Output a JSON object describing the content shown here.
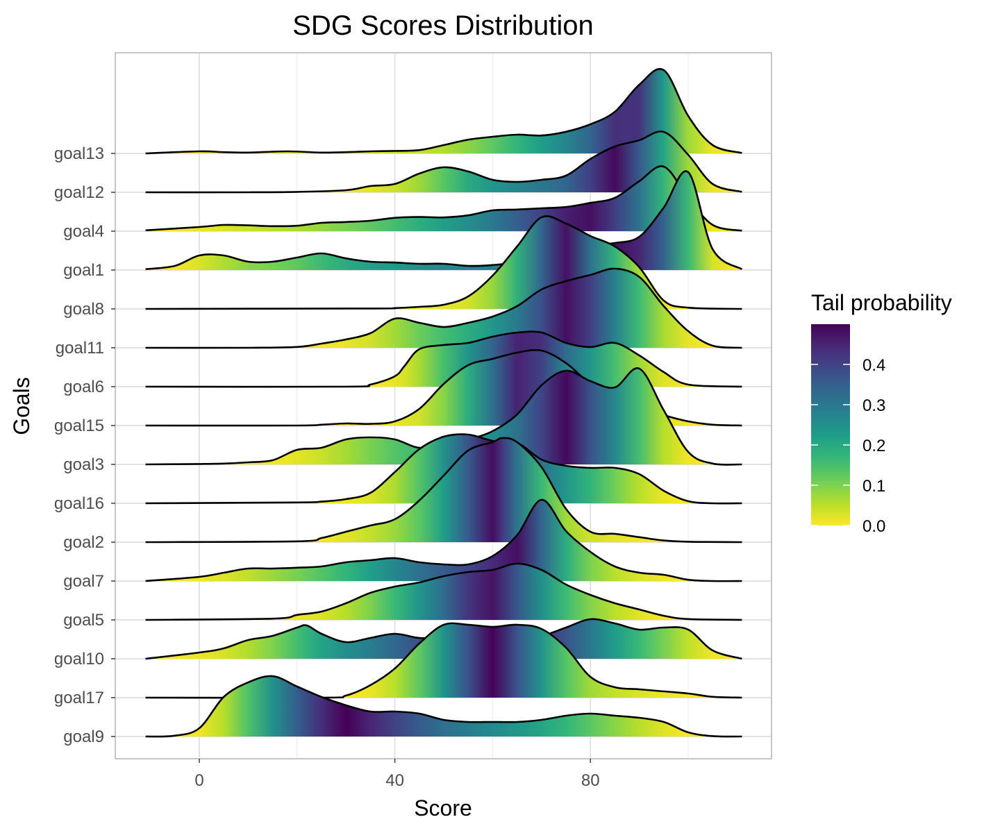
{
  "chart_data": {
    "type": "ridgeline",
    "title": "SDG Scores Distribution",
    "xlabel": "Score",
    "ylabel": "Goals",
    "xlim": [
      -17,
      117
    ],
    "x_ticks": [
      0,
      40,
      80
    ],
    "legend": {
      "title": "Tail probability",
      "colormap": "viridis (reversed: 0.0 yellow, 0.5 dark purple)",
      "range": [
        0,
        0.5
      ],
      "tick_labels": [
        "0.0",
        "0.1",
        "0.2",
        "0.3",
        "0.4"
      ],
      "placement": "right"
    },
    "grid": true,
    "series_order_bottom_to_top": [
      "goal9",
      "goal17",
      "goal10",
      "goal5",
      "goal7",
      "goal2",
      "goal16",
      "goal3",
      "goal15",
      "goal6",
      "goal11",
      "goal8",
      "goal1",
      "goal4",
      "goal12",
      "goal13"
    ],
    "series": [
      {
        "name": "goal13",
        "x": [
          -11,
          0,
          5,
          10,
          18,
          25,
          30,
          35,
          40,
          45,
          50,
          55,
          60,
          65,
          70,
          75,
          80,
          85,
          90,
          95,
          100,
          105,
          111
        ],
        "y": [
          0,
          0.05,
          0.03,
          0.02,
          0.05,
          0.02,
          0.03,
          0.05,
          0.06,
          0.08,
          0.2,
          0.33,
          0.4,
          0.45,
          0.43,
          0.52,
          0.7,
          1.0,
          1.65,
          2.0,
          0.9,
          0.2,
          0.01
        ]
      },
      {
        "name": "goal12",
        "x": [
          -11,
          10,
          20,
          30,
          35,
          40,
          45,
          50,
          55,
          60,
          65,
          70,
          75,
          80,
          85,
          90,
          95,
          100,
          105,
          111
        ],
        "y": [
          0,
          0,
          0.01,
          0.05,
          0.15,
          0.2,
          0.45,
          0.6,
          0.5,
          0.3,
          0.25,
          0.3,
          0.4,
          0.8,
          1.1,
          1.25,
          1.45,
          0.9,
          0.2,
          0.01
        ]
      },
      {
        "name": "goal4",
        "x": [
          -11,
          0,
          5,
          10,
          15,
          20,
          25,
          30,
          35,
          40,
          45,
          50,
          55,
          60,
          65,
          70,
          75,
          80,
          85,
          90,
          95,
          100,
          105,
          111
        ],
        "y": [
          0.02,
          0.1,
          0.15,
          0.14,
          0.12,
          0.13,
          0.2,
          0.22,
          0.25,
          0.32,
          0.34,
          0.33,
          0.38,
          0.5,
          0.52,
          0.55,
          0.58,
          0.68,
          0.8,
          1.2,
          1.55,
          0.8,
          0.15,
          0.01
        ]
      },
      {
        "name": "goal1",
        "x": [
          -11,
          -5,
          0,
          5,
          10,
          15,
          20,
          25,
          30,
          35,
          40,
          45,
          50,
          55,
          60,
          65,
          70,
          75,
          80,
          85,
          90,
          95,
          100,
          105,
          111
        ],
        "y": [
          0.02,
          0.1,
          0.35,
          0.35,
          0.2,
          0.2,
          0.3,
          0.4,
          0.28,
          0.2,
          0.18,
          0.15,
          0.15,
          0.1,
          0.12,
          0.2,
          0.45,
          0.5,
          0.6,
          0.65,
          0.8,
          1.5,
          2.35,
          0.5,
          0.02
        ]
      },
      {
        "name": "goal8",
        "x": [
          -11,
          35,
          40,
          45,
          50,
          55,
          60,
          65,
          70,
          75,
          80,
          85,
          90,
          95,
          100,
          111
        ],
        "y": [
          0,
          0.01,
          0.02,
          0.05,
          0.1,
          0.3,
          0.8,
          1.5,
          2.2,
          2.05,
          1.75,
          1.5,
          1.0,
          0.2,
          0.03,
          0
        ]
      },
      {
        "name": "goal11",
        "x": [
          -11,
          10,
          20,
          25,
          30,
          35,
          40,
          45,
          50,
          55,
          60,
          65,
          70,
          75,
          80,
          85,
          90,
          95,
          100,
          105,
          111
        ],
        "y": [
          0,
          0,
          0.02,
          0.1,
          0.2,
          0.35,
          0.7,
          0.6,
          0.5,
          0.6,
          0.75,
          1.0,
          1.4,
          1.6,
          1.75,
          1.9,
          1.7,
          1.0,
          0.4,
          0.05,
          0
        ]
      },
      {
        "name": "goal6",
        "x": [
          -11,
          30,
          35,
          40,
          42,
          45,
          50,
          55,
          60,
          65,
          70,
          75,
          80,
          85,
          90,
          95,
          100,
          111
        ],
        "y": [
          0,
          0,
          0.05,
          0.25,
          0.5,
          0.9,
          1.0,
          1.05,
          1.2,
          1.3,
          1.3,
          1.05,
          0.95,
          1.05,
          0.75,
          0.35,
          0.05,
          0
        ]
      },
      {
        "name": "goal15",
        "x": [
          -11,
          20,
          25,
          30,
          35,
          40,
          45,
          50,
          55,
          60,
          65,
          70,
          75,
          80,
          85,
          90,
          95,
          100,
          105,
          111
        ],
        "y": [
          0,
          0,
          0.02,
          0.05,
          0.04,
          0.1,
          0.4,
          1.0,
          1.45,
          1.6,
          1.75,
          1.8,
          1.5,
          1.0,
          0.7,
          0.45,
          0.25,
          0.1,
          0.02,
          0
        ]
      },
      {
        "name": "goal3",
        "x": [
          -11,
          0,
          5,
          10,
          15,
          20,
          25,
          30,
          35,
          40,
          45,
          50,
          55,
          60,
          65,
          70,
          75,
          80,
          85,
          90,
          95,
          100,
          105,
          111
        ],
        "y": [
          0,
          0.01,
          0.02,
          0.05,
          0.1,
          0.35,
          0.4,
          0.6,
          0.65,
          0.6,
          0.4,
          0.5,
          0.6,
          0.8,
          1.2,
          1.9,
          2.25,
          2.0,
          1.85,
          2.3,
          1.3,
          0.3,
          0.02,
          0
        ]
      },
      {
        "name": "goal16",
        "x": [
          -11,
          20,
          25,
          30,
          35,
          40,
          45,
          50,
          55,
          60,
          65,
          70,
          75,
          80,
          85,
          90,
          95,
          100,
          105,
          111
        ],
        "y": [
          0,
          0.02,
          0.04,
          0.1,
          0.25,
          0.75,
          1.3,
          1.6,
          1.65,
          1.5,
          1.45,
          1.05,
          0.9,
          0.85,
          0.85,
          0.7,
          0.3,
          0.05,
          0,
          0
        ]
      },
      {
        "name": "goal2",
        "x": [
          -11,
          20,
          25,
          30,
          35,
          40,
          45,
          50,
          55,
          60,
          62,
          65,
          70,
          75,
          80,
          85,
          90,
          95,
          100,
          111
        ],
        "y": [
          0,
          0.02,
          0.1,
          0.25,
          0.4,
          0.55,
          1.0,
          1.6,
          2.2,
          2.4,
          2.5,
          2.4,
          1.8,
          0.8,
          0.25,
          0.2,
          0.12,
          0.04,
          0.01,
          0
        ]
      },
      {
        "name": "goal7",
        "x": [
          -11,
          0,
          5,
          10,
          15,
          20,
          25,
          30,
          35,
          40,
          45,
          50,
          55,
          60,
          65,
          70,
          75,
          80,
          85,
          90,
          95,
          100,
          105,
          111
        ],
        "y": [
          0,
          0.1,
          0.2,
          0.3,
          0.3,
          0.32,
          0.35,
          0.45,
          0.5,
          0.55,
          0.45,
          0.4,
          0.4,
          0.6,
          1.1,
          1.95,
          1.2,
          0.7,
          0.35,
          0.2,
          0.15,
          0.03,
          0,
          0
        ]
      },
      {
        "name": "goal5",
        "x": [
          -11,
          15,
          20,
          25,
          30,
          35,
          40,
          45,
          50,
          55,
          60,
          65,
          70,
          75,
          80,
          85,
          90,
          95,
          100,
          111
        ],
        "y": [
          0,
          0.03,
          0.12,
          0.2,
          0.4,
          0.65,
          0.8,
          0.9,
          1.05,
          1.15,
          1.2,
          1.35,
          1.2,
          0.85,
          0.6,
          0.4,
          0.25,
          0.1,
          0.02,
          0
        ]
      },
      {
        "name": "goal10",
        "x": [
          -11,
          0,
          5,
          10,
          15,
          20,
          22,
          25,
          30,
          35,
          40,
          45,
          50,
          55,
          60,
          65,
          70,
          75,
          80,
          85,
          90,
          95,
          100,
          105,
          111
        ],
        "y": [
          0,
          0.15,
          0.25,
          0.45,
          0.55,
          0.75,
          0.8,
          0.6,
          0.4,
          0.5,
          0.6,
          0.5,
          0.5,
          0.45,
          0.5,
          0.5,
          0.55,
          0.75,
          0.95,
          0.85,
          0.7,
          0.75,
          0.7,
          0.2,
          0
        ]
      },
      {
        "name": "goal17",
        "x": [
          -11,
          25,
          30,
          35,
          40,
          45,
          50,
          55,
          60,
          65,
          70,
          75,
          80,
          85,
          90,
          95,
          100,
          105,
          111
        ],
        "y": [
          0,
          0,
          0.05,
          0.3,
          0.7,
          1.3,
          1.75,
          1.75,
          1.7,
          1.75,
          1.65,
          1.2,
          0.5,
          0.25,
          0.2,
          0.15,
          0.1,
          0.02,
          0
        ]
      },
      {
        "name": "goal9",
        "x": [
          -11,
          -5,
          0,
          5,
          10,
          15,
          20,
          25,
          30,
          35,
          40,
          45,
          50,
          55,
          60,
          65,
          70,
          75,
          80,
          85,
          90,
          95,
          100,
          105,
          111
        ],
        "y": [
          0,
          0.02,
          0.2,
          0.95,
          1.3,
          1.45,
          1.2,
          0.95,
          0.75,
          0.6,
          0.6,
          0.55,
          0.4,
          0.35,
          0.35,
          0.35,
          0.4,
          0.5,
          0.55,
          0.5,
          0.45,
          0.35,
          0.1,
          0.01,
          0
        ]
      }
    ]
  }
}
